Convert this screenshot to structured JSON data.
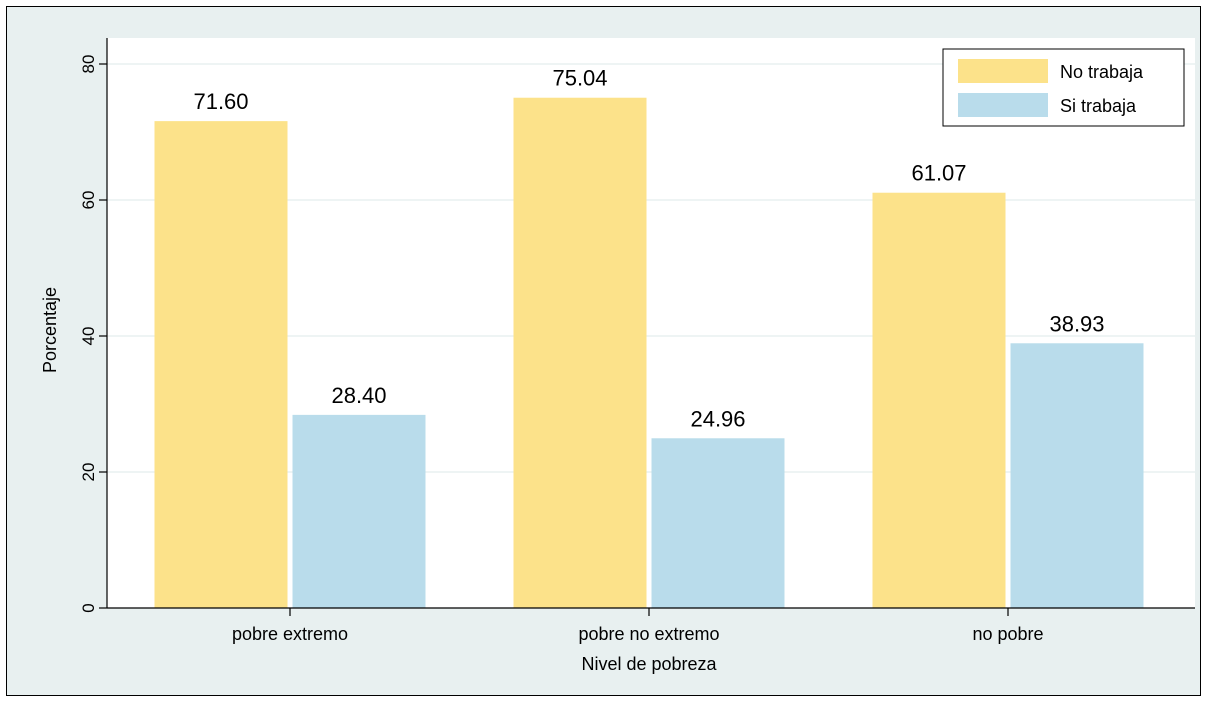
{
  "chart_data": {
    "type": "bar",
    "categories": [
      "pobre extremo",
      "pobre no extremo",
      "no pobre"
    ],
    "series": [
      {
        "name": "No trabaja",
        "values": [
          71.6,
          75.04,
          61.07
        ],
        "labels": [
          "71.60",
          "75.04",
          "61.07"
        ],
        "color": "#fce28a"
      },
      {
        "name": "Si trabaja",
        "values": [
          28.4,
          24.96,
          38.93
        ],
        "labels": [
          "28.40",
          "24.96",
          "38.93"
        ],
        "color": "#b9dceb"
      }
    ],
    "xlabel": "Nivel de pobreza",
    "ylabel": "Porcentaje",
    "ylim": [
      0,
      80
    ],
    "yticks": [
      0,
      20,
      40,
      60,
      80
    ],
    "ytick_labels": [
      "0",
      "20",
      "40",
      "60",
      "80"
    ],
    "grid": true,
    "legend_position": "top-right",
    "background_color": "#e8f0f0",
    "plot_background_color": "#ffffff",
    "grid_color": "#e8f0f0"
  }
}
